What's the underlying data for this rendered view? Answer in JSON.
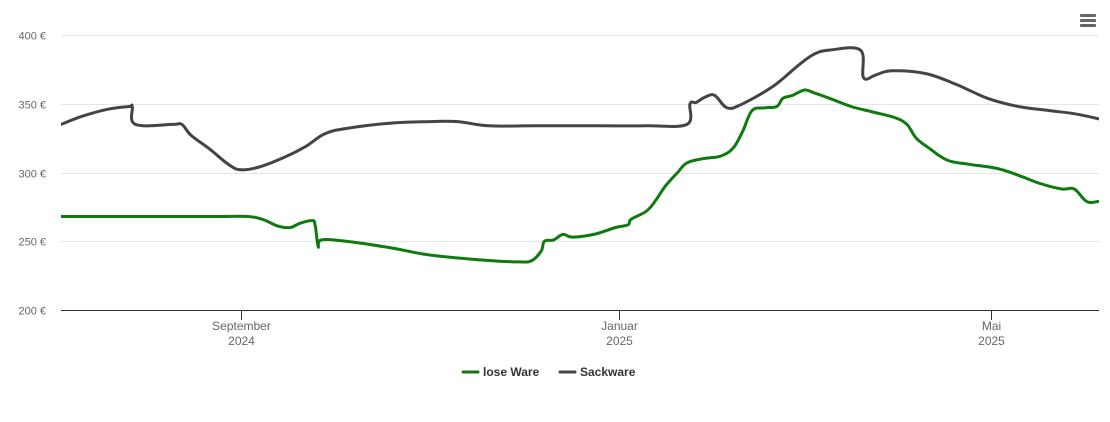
{
  "chart_data": {
    "type": "line",
    "title": "",
    "xlabel": "",
    "ylabel": "",
    "ylim": [
      200,
      400
    ],
    "y_ticks": [
      200,
      250,
      300,
      350,
      400
    ],
    "y_tick_labels": [
      "200 €",
      "250 €",
      "300 €",
      "350 €",
      "400 €"
    ],
    "x_range": [
      "2024-07-05",
      "2025-06-05"
    ],
    "x_ticks": [
      {
        "date": "2024-09-01",
        "line1": "September",
        "line2": "2024"
      },
      {
        "date": "2025-01-01",
        "line1": "Januar",
        "line2": "2025"
      },
      {
        "date": "2025-05-01",
        "line1": "Mai",
        "line2": "2025"
      }
    ],
    "grid": "horizontal",
    "legend": "bottom-center",
    "series": [
      {
        "name": "lose Ware",
        "color": "#0f7a0f",
        "points": [
          [
            "2024-07-05",
            268
          ],
          [
            "2024-07-20",
            268
          ],
          [
            "2024-08-10",
            268
          ],
          [
            "2024-08-25",
            268
          ],
          [
            "2024-09-03",
            268
          ],
          [
            "2024-09-08",
            266
          ],
          [
            "2024-09-13",
            261
          ],
          [
            "2024-09-17",
            260
          ],
          [
            "2024-09-20",
            263
          ],
          [
            "2024-09-24",
            265
          ],
          [
            "2024-09-25",
            262
          ],
          [
            "2024-09-26",
            246
          ],
          [
            "2024-09-27",
            251
          ],
          [
            "2024-10-05",
            250
          ],
          [
            "2024-10-20",
            245
          ],
          [
            "2024-11-01",
            240
          ],
          [
            "2024-11-20",
            236
          ],
          [
            "2024-11-30",
            235
          ],
          [
            "2024-12-04",
            236
          ],
          [
            "2024-12-07",
            243
          ],
          [
            "2024-12-08",
            250
          ],
          [
            "2024-12-11",
            251
          ],
          [
            "2024-12-14",
            255
          ],
          [
            "2024-12-17",
            253
          ],
          [
            "2024-12-24",
            255
          ],
          [
            "2024-12-31",
            260
          ],
          [
            "2025-01-04",
            262
          ],
          [
            "2025-01-05",
            266
          ],
          [
            "2025-01-10",
            272
          ],
          [
            "2025-01-13",
            280
          ],
          [
            "2025-01-16",
            290
          ],
          [
            "2025-01-20",
            300
          ],
          [
            "2025-01-23",
            307
          ],
          [
            "2025-01-28",
            310
          ],
          [
            "2025-02-03",
            312
          ],
          [
            "2025-02-07",
            318
          ],
          [
            "2025-02-10",
            330
          ],
          [
            "2025-02-13",
            345
          ],
          [
            "2025-02-17",
            347
          ],
          [
            "2025-02-21",
            348
          ],
          [
            "2025-02-23",
            354
          ],
          [
            "2025-02-26",
            356
          ],
          [
            "2025-03-02",
            360
          ],
          [
            "2025-03-05",
            358
          ],
          [
            "2025-03-10",
            354
          ],
          [
            "2025-03-17",
            348
          ],
          [
            "2025-03-24",
            344
          ],
          [
            "2025-03-31",
            340
          ],
          [
            "2025-04-04",
            335
          ],
          [
            "2025-04-07",
            325
          ],
          [
            "2025-04-11",
            318
          ],
          [
            "2025-04-17",
            309
          ],
          [
            "2025-04-24",
            306
          ],
          [
            "2025-05-03",
            303
          ],
          [
            "2025-05-10",
            298
          ],
          [
            "2025-05-17",
            292
          ],
          [
            "2025-05-24",
            288
          ],
          [
            "2025-05-28",
            288
          ],
          [
            "2025-06-01",
            279
          ],
          [
            "2025-06-05",
            279
          ],
          [
            "2025-06-12",
            282
          ]
        ]
      },
      {
        "name": "Sackware",
        "color": "#434348",
        "points": [
          [
            "2024-07-05",
            335
          ],
          [
            "2024-07-12",
            341
          ],
          [
            "2024-07-20",
            346
          ],
          [
            "2024-07-27",
            348
          ],
          [
            "2024-07-28",
            348
          ],
          [
            "2024-07-29",
            335
          ],
          [
            "2024-08-10",
            335
          ],
          [
            "2024-08-13",
            335
          ],
          [
            "2024-08-16",
            327
          ],
          [
            "2024-08-22",
            317
          ],
          [
            "2024-08-28",
            306
          ],
          [
            "2024-09-01",
            302
          ],
          [
            "2024-09-07",
            304
          ],
          [
            "2024-09-15",
            311
          ],
          [
            "2024-09-22",
            319
          ],
          [
            "2024-09-28",
            328
          ],
          [
            "2024-10-05",
            332
          ],
          [
            "2024-10-20",
            336
          ],
          [
            "2024-11-01",
            337
          ],
          [
            "2024-11-10",
            337
          ],
          [
            "2024-11-20",
            334
          ],
          [
            "2024-12-05",
            334
          ],
          [
            "2024-12-25",
            334
          ],
          [
            "2025-01-10",
            334
          ],
          [
            "2025-01-23",
            335
          ],
          [
            "2025-01-24",
            350
          ],
          [
            "2025-01-26",
            351
          ],
          [
            "2025-01-29",
            355
          ],
          [
            "2025-02-01",
            356
          ],
          [
            "2025-02-05",
            347
          ],
          [
            "2025-02-10",
            350
          ],
          [
            "2025-02-20",
            363
          ],
          [
            "2025-02-28",
            378
          ],
          [
            "2025-03-05",
            386
          ],
          [
            "2025-03-10",
            389
          ],
          [
            "2025-03-20",
            389
          ],
          [
            "2025-03-21",
            369
          ],
          [
            "2025-03-25",
            371
          ],
          [
            "2025-03-30",
            374
          ],
          [
            "2025-04-10",
            372
          ],
          [
            "2025-04-20",
            364
          ],
          [
            "2025-04-30",
            354
          ],
          [
            "2025-05-10",
            348
          ],
          [
            "2025-05-20",
            345
          ],
          [
            "2025-05-30",
            342
          ],
          [
            "2025-06-12",
            335
          ]
        ]
      }
    ]
  },
  "menu": {
    "icon": "hamburger-menu-icon"
  }
}
